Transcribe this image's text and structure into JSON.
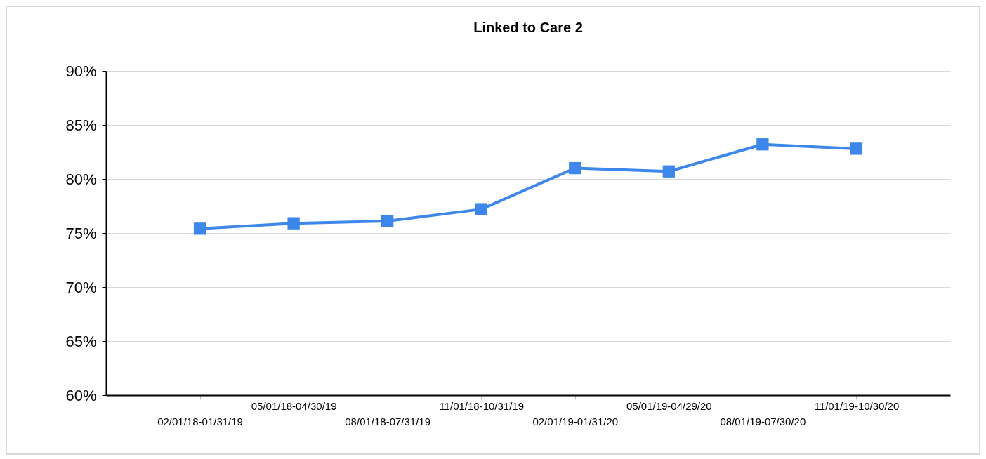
{
  "chart_data": {
    "type": "line",
    "title": "Linked to Care 2",
    "categories": [
      "02/01/18-01/31/19",
      "05/01/18-04/30/19",
      "08/01/18-07/31/19",
      "11/01/18-10/31/19",
      "02/01/19-01/31/20",
      "05/01/19-04/29/20",
      "08/01/19-07/30/20",
      "11/01/19-10/30/20"
    ],
    "series": [
      {
        "color": "#3d87eb",
        "values": [
          75.4,
          75.9,
          76.1,
          77.2,
          81.0,
          80.7,
          83.2,
          82.8
        ]
      }
    ],
    "ylim": [
      60,
      90
    ],
    "yticks": [
      {
        "value": 60,
        "label": "60%"
      },
      {
        "value": 65,
        "label": "65%"
      },
      {
        "value": 70,
        "label": "70%"
      },
      {
        "value": 75,
        "label": "75%"
      },
      {
        "value": 80,
        "label": "80%"
      },
      {
        "value": 85,
        "label": "85%"
      },
      {
        "value": 90,
        "label": "90%"
      }
    ],
    "grid": "y",
    "marker": "square",
    "line_style": "solid"
  }
}
